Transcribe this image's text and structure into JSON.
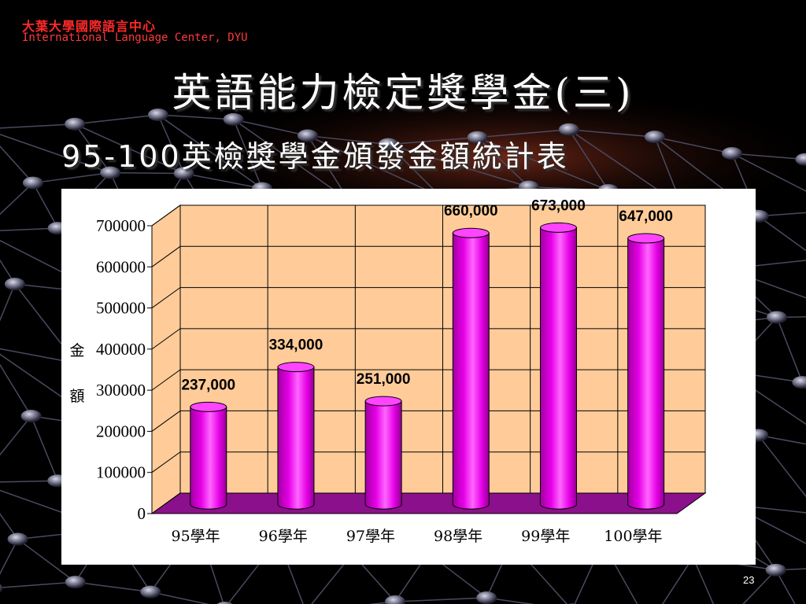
{
  "header": {
    "org_cn": "大葉大學國際語言中心",
    "org_en": "International Language Center, DYU"
  },
  "slide": {
    "title": "英語能力檢定獎學金(三)",
    "subtitle": "95-100英檢獎學金頒發金額統計表",
    "page_number": "23"
  },
  "colors": {
    "bar": "#e600e6",
    "floor": "#8b108b",
    "wall": "#ffcc99",
    "title": "#ffffff",
    "header": "#ff2a2a"
  },
  "chart_data": {
    "type": "bar",
    "categories": [
      "95學年",
      "96學年",
      "97學年",
      "98學年",
      "99學年",
      "100學年"
    ],
    "values": [
      237000,
      334000,
      251000,
      660000,
      673000,
      647000
    ],
    "data_labels": [
      "237,000",
      "334,000",
      "251,000",
      "660,000",
      "673,000",
      "647,000"
    ],
    "ylabel": "金額",
    "ylim": [
      0,
      700000
    ],
    "yticks": [
      "0",
      "100000",
      "200000",
      "300000",
      "400000",
      "500000",
      "600000",
      "700000"
    ],
    "grid": true,
    "legend": "none"
  }
}
